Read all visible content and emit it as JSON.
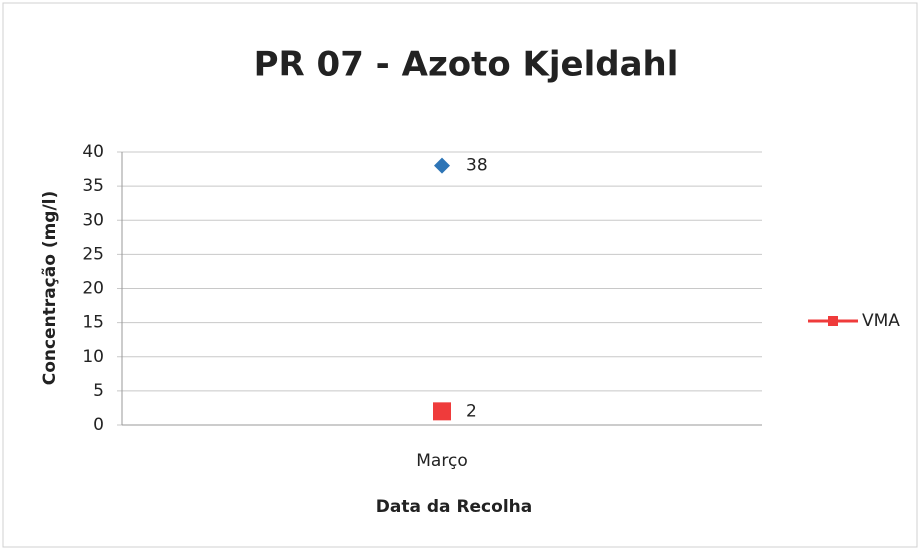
{
  "chart_data": {
    "type": "line",
    "title": "PR 07 - Azoto Kjeldahl",
    "x_label": "Data da Recolha",
    "y_label": "Concentração (mg/l)",
    "categories": [
      "Março"
    ],
    "series": [
      {
        "color": "#2e75b6",
        "marker": "diamond",
        "values": [
          38
        ]
      },
      {
        "name": "VMA",
        "color": "#ef3b3b",
        "marker": "square",
        "values": [
          2
        ]
      }
    ],
    "ylim": [
      0,
      40
    ],
    "yticks": [
      0,
      5,
      10,
      15,
      20,
      25,
      30,
      35,
      40
    ],
    "grid": true,
    "legend": "right"
  }
}
